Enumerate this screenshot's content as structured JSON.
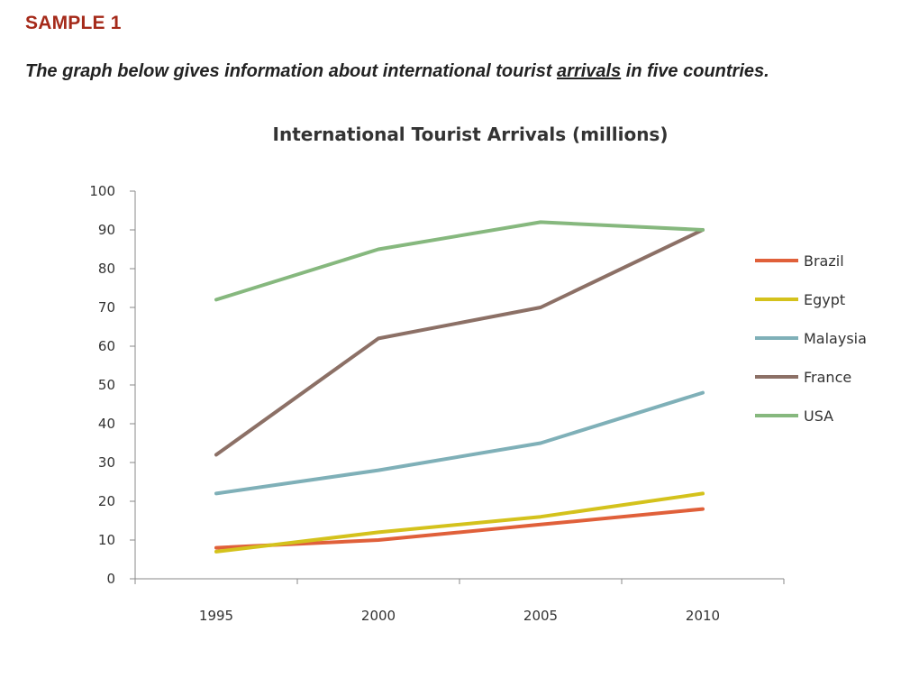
{
  "heading": "SAMPLE 1",
  "intro": {
    "before": "The graph below gives information about international tourist ",
    "underlined": "arrivals",
    "after": " in five countries."
  },
  "chart_data": {
    "type": "line",
    "title": "International Tourist Arrivals (millions)",
    "xlabel": "",
    "ylabel": "",
    "categories": [
      "1995",
      "2000",
      "2005",
      "2010"
    ],
    "ylim": [
      0,
      100
    ],
    "yticks": [
      0,
      10,
      20,
      30,
      40,
      50,
      60,
      70,
      80,
      90,
      100
    ],
    "grid": false,
    "legend_position": "right",
    "series": [
      {
        "name": "Brazil",
        "color": "#e0603a",
        "values": [
          8,
          10,
          14,
          18
        ]
      },
      {
        "name": "Egypt",
        "color": "#d4c21c",
        "values": [
          7,
          12,
          16,
          22
        ]
      },
      {
        "name": "Malaysia",
        "color": "#7fb0b8",
        "values": [
          22,
          28,
          35,
          48
        ]
      },
      {
        "name": "France",
        "color": "#8c7066",
        "values": [
          32,
          62,
          70,
          90
        ]
      },
      {
        "name": "USA",
        "color": "#86b87e",
        "values": [
          72,
          85,
          92,
          90
        ]
      }
    ]
  }
}
